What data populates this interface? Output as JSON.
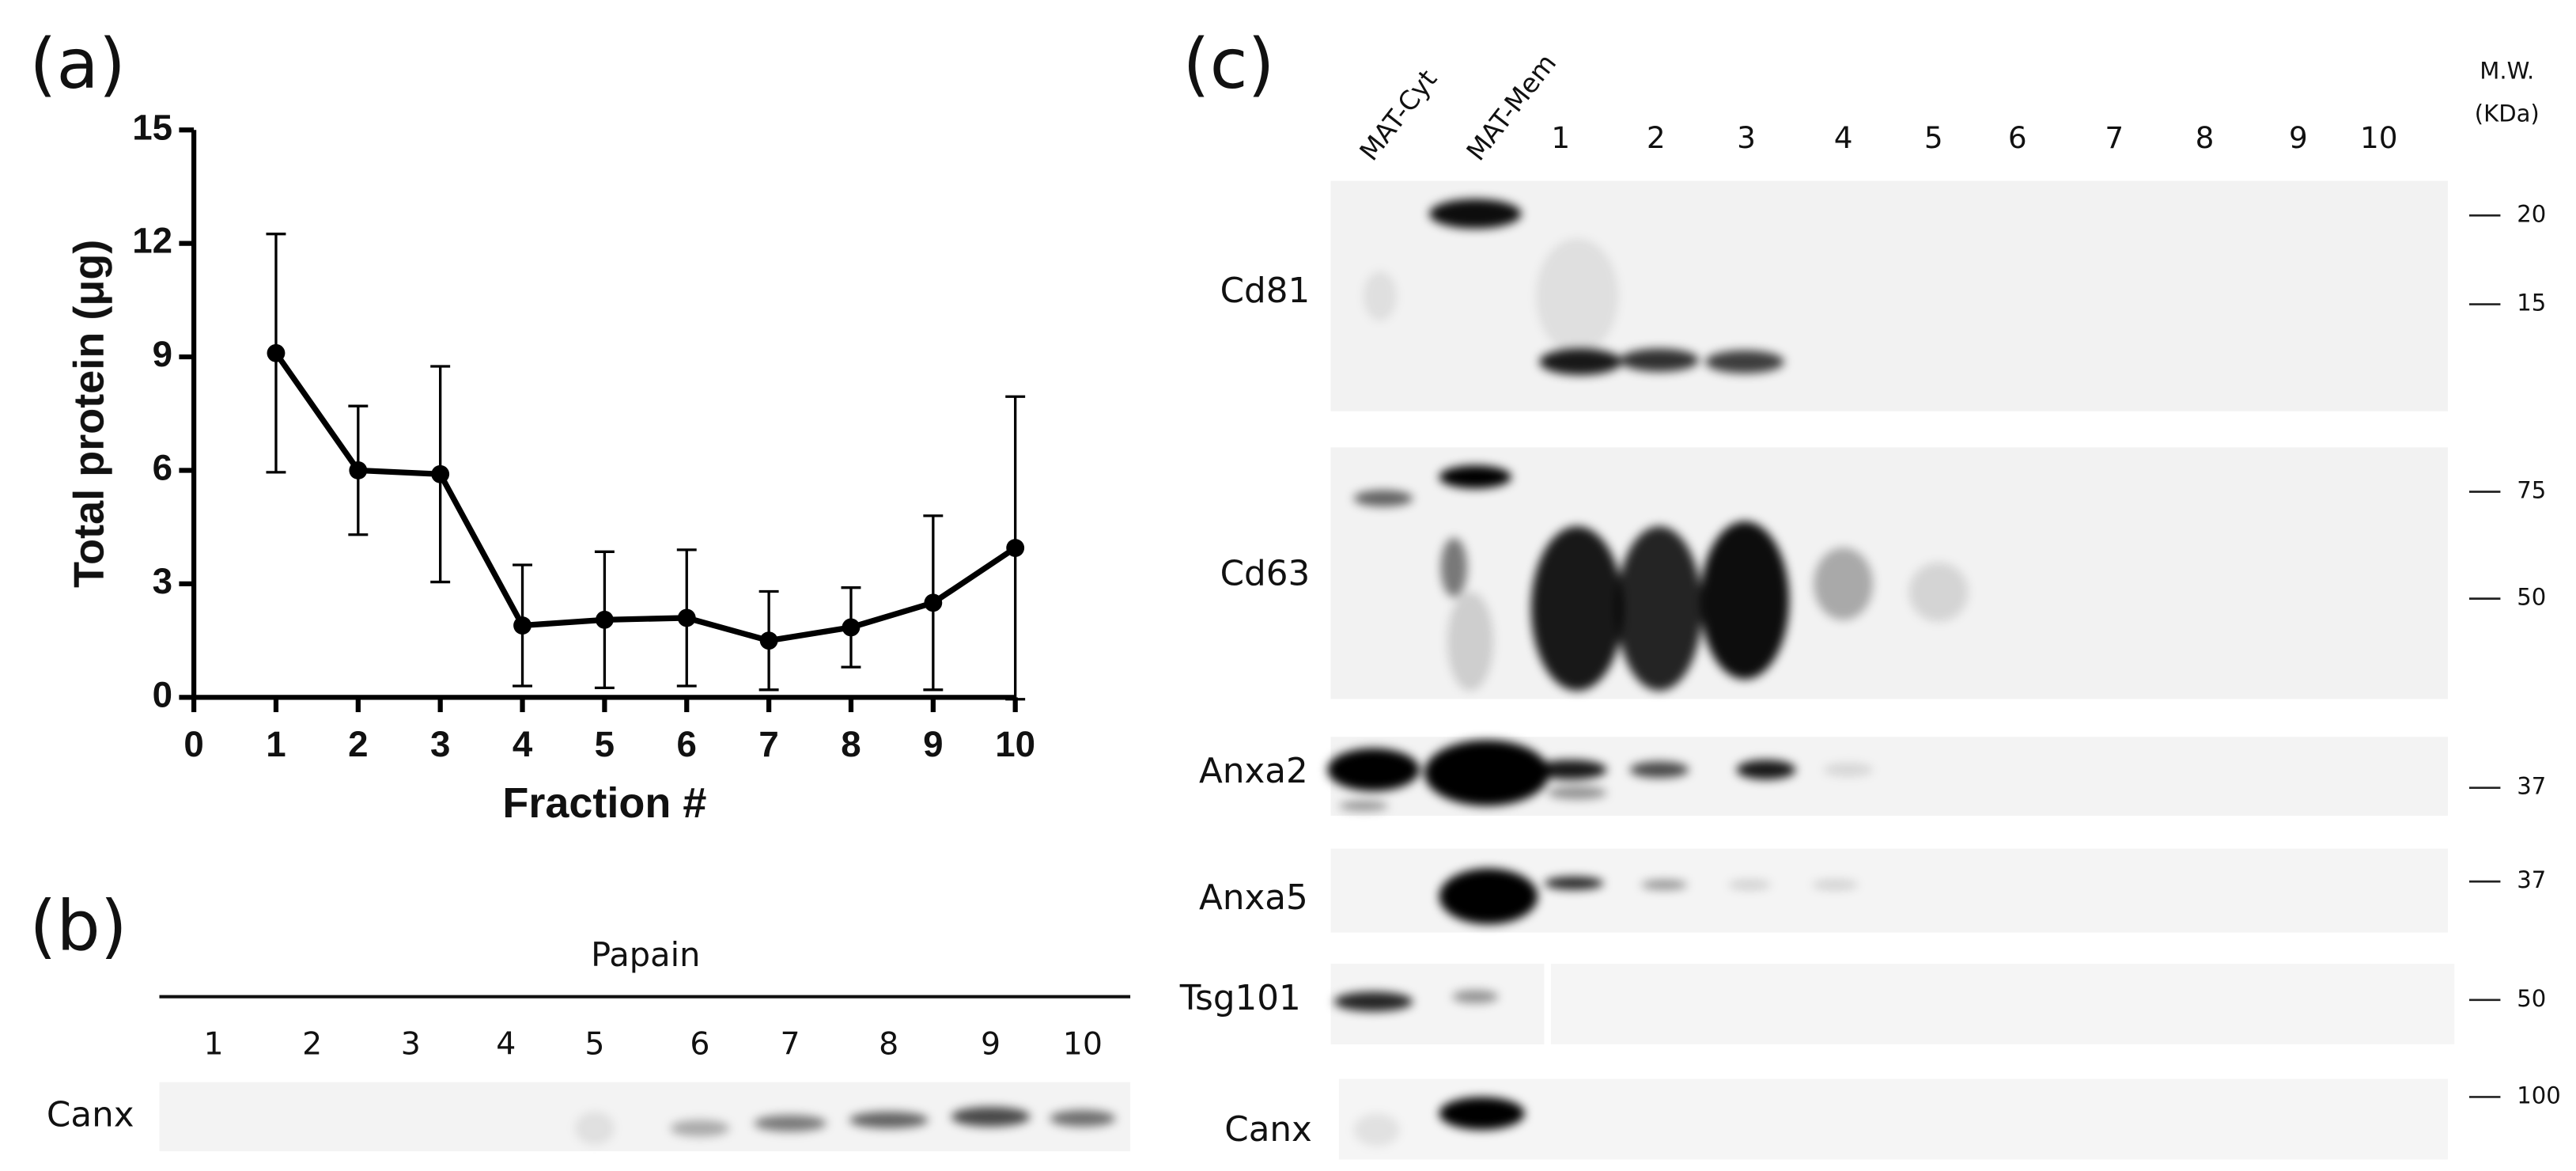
{
  "panel_labels": [
    "(a)",
    "(b)",
    "(c)"
  ],
  "chart_data": {
    "type": "line",
    "x_label": "Fraction #",
    "y_label": "Total protein (μg)",
    "x": [
      1,
      2,
      3,
      4,
      5,
      6,
      7,
      8,
      9,
      10
    ],
    "values": [
      9.1,
      6.0,
      5.9,
      1.9,
      2.05,
      2.1,
      1.5,
      1.85,
      2.5,
      3.95
    ],
    "errors": [
      3.15,
      1.7,
      2.85,
      1.6,
      1.8,
      1.8,
      1.3,
      1.05,
      2.3,
      4.0
    ],
    "color": "#000000",
    "xlim": [
      0,
      10
    ],
    "xticks": [
      0,
      1,
      2,
      3,
      4,
      5,
      6,
      7,
      8,
      9,
      10
    ],
    "ylim": [
      0,
      15
    ],
    "yticks": [
      0,
      3,
      6,
      9,
      12,
      15
    ]
  },
  "blot_b": {
    "header": "Papain",
    "lanes": [
      "1",
      "2",
      "3",
      "4",
      "5",
      "6",
      "7",
      "8",
      "9",
      "10"
    ],
    "rows": [
      "Canx"
    ]
  },
  "blot_c": {
    "lanes": [
      "MAT-Cyt",
      "MAT-Mem",
      "1",
      "2",
      "3",
      "4",
      "5",
      "6",
      "7",
      "8",
      "9",
      "10"
    ],
    "mw_title": [
      "M.W.",
      "(KDa)"
    ],
    "rows": [
      {
        "label": "Cd81",
        "markers": [
          "20",
          "15"
        ]
      },
      {
        "label": "Cd63",
        "markers": [
          "75",
          "50"
        ]
      },
      {
        "label": "Anxa2",
        "markers": [
          "37"
        ]
      },
      {
        "label": "Anxa5",
        "markers": [
          "37"
        ]
      },
      {
        "label": "Tsg101",
        "markers": [
          "50"
        ]
      },
      {
        "label": "Canx",
        "markers": [
          "100"
        ]
      }
    ]
  }
}
